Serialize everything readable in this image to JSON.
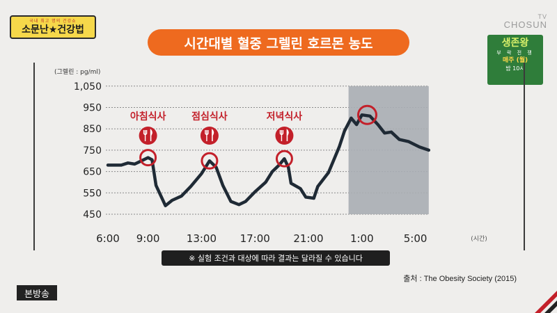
{
  "show": {
    "logo_top": "국내 최고 명의 건강쇼",
    "logo_main": "소문난★건강법"
  },
  "broadcaster": {
    "line1": "TV",
    "line2": "CHOSUN"
  },
  "promo": {
    "title": "생존왕",
    "subtitle": "부 락 전 쟁",
    "day": "매주 (월)",
    "time": "밤 10시"
  },
  "title": "시간대별 혈중 그렐린 호르몬 농도",
  "badge": "본방송",
  "note": "※ 실험 조건과 대상에 따라 결과는 달라질 수 있습니다",
  "source": "출처 : The Obesity Society (2015)",
  "colors": {
    "accent": "#ee6a1f",
    "line": "#1f2a35",
    "marker": "#c3202a",
    "night_band": "#a9adb4"
  },
  "chart_data": {
    "type": "line",
    "title": "시간대별 혈중 그렐린 호르몬 농도",
    "ylabel": "(그렐린 : pg/ml)",
    "xlabel": "(시간)",
    "ylim": [
      450,
      1050
    ],
    "yticks": [
      "450",
      "550",
      "650",
      "750",
      "850",
      "950",
      "1,050"
    ],
    "ytick_values": [
      450,
      550,
      650,
      750,
      850,
      950,
      1050
    ],
    "xticks": [
      "6:00",
      "9:00",
      "13:00",
      "17:00",
      "21:00",
      "1:00",
      "5:00"
    ],
    "xtick_hours": [
      6,
      9,
      13,
      17,
      21,
      25,
      29
    ],
    "grid": true,
    "night_band": {
      "from": 24,
      "to": 30
    },
    "series": [
      {
        "points": [
          [
            6,
            680
          ],
          [
            7,
            680
          ],
          [
            7.5,
            690
          ],
          [
            8,
            685
          ],
          [
            8.5,
            700
          ],
          [
            9,
            715
          ],
          [
            9.3,
            705
          ],
          [
            9.6,
            585
          ],
          [
            10.3,
            490
          ],
          [
            10.8,
            515
          ],
          [
            11.5,
            535
          ],
          [
            12.2,
            580
          ],
          [
            13,
            640
          ],
          [
            13.6,
            700
          ],
          [
            14.1,
            670
          ],
          [
            14.6,
            585
          ],
          [
            15.2,
            510
          ],
          [
            15.8,
            495
          ],
          [
            16.3,
            510
          ],
          [
            17,
            555
          ],
          [
            17.8,
            600
          ],
          [
            18.3,
            650
          ],
          [
            18.8,
            680
          ],
          [
            19.2,
            710
          ],
          [
            19.5,
            670
          ],
          [
            19.7,
            595
          ],
          [
            20.4,
            570
          ],
          [
            20.8,
            530
          ],
          [
            21.4,
            525
          ],
          [
            21.7,
            580
          ],
          [
            22.5,
            645
          ],
          [
            23.3,
            765
          ],
          [
            23.7,
            840
          ],
          [
            24.2,
            900
          ],
          [
            24.6,
            870
          ],
          [
            25,
            915
          ],
          [
            25.6,
            910
          ],
          [
            26.2,
            870
          ],
          [
            26.7,
            830
          ],
          [
            27.2,
            835
          ],
          [
            27.8,
            800
          ],
          [
            28.5,
            790
          ],
          [
            29.3,
            765
          ],
          [
            30,
            750
          ]
        ]
      }
    ],
    "meals": [
      {
        "label": "아침식사",
        "hour": 9,
        "value": 715
      },
      {
        "label": "점심식사",
        "hour": 13.6,
        "value": 700
      },
      {
        "label": "저녁식사",
        "hour": 19.2,
        "value": 710
      }
    ],
    "peak_marker": {
      "hour": 25.4,
      "value": 915
    }
  }
}
